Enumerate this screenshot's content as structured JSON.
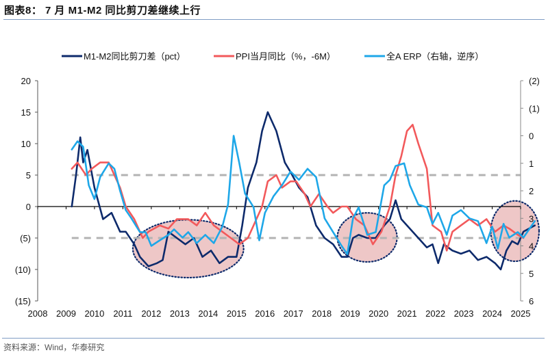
{
  "header": {
    "title": "图表8：  7 月 M1-M2 同比剪刀差继续上行"
  },
  "footer": {
    "source": "资料来源：Wind，华泰研究"
  },
  "chart_data": {
    "type": "line",
    "title": "7 月 M1-M2 同比剪刀差继续上行",
    "xlabel": "",
    "ylabel": "",
    "xlim": [
      2008,
      2025
    ],
    "x_ticks": [
      "2008",
      "2009",
      "2010",
      "2011",
      "2012",
      "2013",
      "2014",
      "2015",
      "2016",
      "2017",
      "2018",
      "2019",
      "2020",
      "2021",
      "2022",
      "2023",
      "2024",
      "2025"
    ],
    "y_left": {
      "lim": [
        -15,
        20
      ],
      "ticks": [
        20,
        15,
        10,
        5,
        0,
        -5,
        -10,
        -15
      ],
      "tick_labels": [
        "20",
        "15",
        "10",
        "5",
        "0",
        "(5)",
        "(10)",
        "(15)"
      ]
    },
    "y_right": {
      "lim": [
        -2,
        6
      ],
      "reversed": true,
      "ticks": [
        -2,
        -1,
        0,
        1,
        2,
        3,
        4,
        5,
        6
      ],
      "tick_labels": [
        "(2)",
        "(1)",
        "0",
        "1",
        "2",
        "3",
        "4",
        "5",
        "6"
      ]
    },
    "grid": false,
    "legend_position": "top",
    "reference_lines": [
      {
        "axis": "left",
        "value": 5,
        "style": "dashed",
        "color": "#b3b3b3"
      },
      {
        "axis": "left",
        "value": -5,
        "style": "dashed",
        "color": "#b3b3b3"
      }
    ],
    "highlights": [
      {
        "shape": "ellipse",
        "cx": 2013.3,
        "cy": -6.7,
        "rx_years": 1.95,
        "ry_units": 4.6,
        "fill": "#e8b4b4",
        "border": "dotted"
      },
      {
        "shape": "ellipse",
        "cx": 2019.6,
        "cy": -4.9,
        "rx_years": 1.05,
        "ry_units": 3.9,
        "fill": "#e8b4b4",
        "border": "dotted"
      },
      {
        "shape": "ellipse",
        "cx": 2024.8,
        "cy": -3.9,
        "rx_years": 0.85,
        "ry_units": 4.8,
        "fill": "#e8b4b4",
        "border": "dotted"
      }
    ],
    "series": [
      {
        "name": "M1-M2同比剪刀差（pct）",
        "axis": "left",
        "color": "#0d2a6b",
        "x": [
          2009.2,
          2009.35,
          2009.5,
          2009.6,
          2009.75,
          2010.0,
          2010.3,
          2010.6,
          2010.9,
          2011.1,
          2011.4,
          2011.6,
          2011.9,
          2012.2,
          2012.4,
          2012.6,
          2012.9,
          2013.2,
          2013.5,
          2013.8,
          2014.1,
          2014.4,
          2014.7,
          2015.0,
          2015.2,
          2015.4,
          2015.7,
          2015.9,
          2016.1,
          2016.4,
          2016.7,
          2016.9,
          2017.2,
          2017.5,
          2017.8,
          2018.1,
          2018.4,
          2018.7,
          2018.9,
          2019.1,
          2019.3,
          2019.6,
          2019.9,
          2020.2,
          2020.4,
          2020.6,
          2020.8,
          2021.1,
          2021.4,
          2021.7,
          2021.9,
          2022.1,
          2022.3,
          2022.6,
          2022.9,
          2023.2,
          2023.5,
          2023.8,
          2024.1,
          2024.3,
          2024.5,
          2024.7,
          2024.9,
          2025.1,
          2025.5
        ],
        "values": [
          0,
          5,
          11,
          7,
          9,
          3,
          -2,
          -1,
          -4,
          -4,
          -6,
          -8,
          -9.5,
          -9,
          -8.5,
          -4,
          -5,
          -6,
          -5,
          -8,
          -7,
          -9,
          -8,
          -8,
          -3,
          3,
          7,
          12,
          15,
          12,
          7,
          5.5,
          3,
          1.5,
          -3,
          -5,
          -6,
          -8,
          -8,
          -5,
          -4.5,
          -5,
          -5,
          -3,
          -2,
          1,
          -2,
          -3.5,
          -5,
          -6.5,
          -6,
          -9,
          -6,
          -7,
          -7.5,
          -7,
          -8.5,
          -8,
          -9,
          -10,
          -7,
          -5.5,
          -6,
          -4,
          -3
        ]
      },
      {
        "name": "PPI当月同比（%，-6M）",
        "axis": "left",
        "color": "#f2595b",
        "x": [
          2009.2,
          2009.4,
          2009.7,
          2009.9,
          2010.2,
          2010.5,
          2010.7,
          2010.9,
          2011.1,
          2011.4,
          2011.7,
          2011.9,
          2012.3,
          2012.6,
          2012.9,
          2013.3,
          2013.6,
          2013.9,
          2014.2,
          2014.5,
          2014.8,
          2015.1,
          2015.4,
          2015.6,
          2015.9,
          2016.1,
          2016.4,
          2016.6,
          2016.9,
          2017.1,
          2017.4,
          2017.6,
          2017.9,
          2018.2,
          2018.4,
          2018.7,
          2018.9,
          2019.2,
          2019.5,
          2019.8,
          2020.1,
          2020.4,
          2020.6,
          2020.8,
          2021.0,
          2021.2,
          2021.4,
          2021.7,
          2021.9,
          2022.2,
          2022.4,
          2022.6,
          2022.9,
          2023.2,
          2023.5,
          2023.8,
          2024.1,
          2024.4,
          2024.6,
          2024.9,
          2025.1
        ],
        "values": [
          6,
          7,
          5,
          6,
          7,
          7,
          5,
          3,
          0,
          -2,
          -5,
          -4,
          -3,
          -3.5,
          -2,
          -2,
          -3,
          -1,
          -3,
          -4,
          -5,
          -6,
          -5,
          -3,
          0,
          4,
          5,
          3,
          4,
          4,
          2,
          0,
          2,
          0,
          -1,
          0,
          0,
          -2,
          -3,
          -6,
          -4,
          0,
          5,
          8,
          12,
          13,
          10,
          6,
          -3,
          -4,
          -7,
          -4,
          -3,
          -2,
          -3,
          -2,
          -4,
          -3,
          -3.5,
          -4.5,
          -5
        ]
      },
      {
        "name": "全A ERP（右轴，逆序）",
        "axis": "right",
        "color": "#1ea7e8",
        "x": [
          2009.2,
          2009.4,
          2009.6,
          2009.8,
          2010.0,
          2010.2,
          2010.5,
          2010.7,
          2010.9,
          2011.1,
          2011.3,
          2011.6,
          2011.8,
          2012.0,
          2012.3,
          2012.6,
          2012.8,
          2013.1,
          2013.3,
          2013.6,
          2013.9,
          2014.2,
          2014.5,
          2014.7,
          2014.9,
          2015.1,
          2015.3,
          2015.6,
          2015.8,
          2016.0,
          2016.3,
          2016.6,
          2016.9,
          2017.2,
          2017.5,
          2017.8,
          2018.1,
          2018.4,
          2018.7,
          2018.9,
          2019.1,
          2019.3,
          2019.6,
          2019.9,
          2020.2,
          2020.4,
          2020.6,
          2020.9,
          2021.1,
          2021.4,
          2021.7,
          2021.9,
          2022.1,
          2022.4,
          2022.6,
          2022.9,
          2023.2,
          2023.5,
          2023.8,
          2024.0,
          2024.2,
          2024.4,
          2024.6,
          2024.9,
          2025.1,
          2025.5
        ],
        "values": [
          0.5,
          0.2,
          0.4,
          1.8,
          2.3,
          1.5,
          1.0,
          1.2,
          2.0,
          2.7,
          3.0,
          3.5,
          3.5,
          4.0,
          3.8,
          3.6,
          3.4,
          3.7,
          3.5,
          3.9,
          3.6,
          3.9,
          3.3,
          2.5,
          0.0,
          1.0,
          2.1,
          2.6,
          3.8,
          2.8,
          2.2,
          1.8,
          1.3,
          1.6,
          1.2,
          1.5,
          3.0,
          3.5,
          4.0,
          4.3,
          3.0,
          2.6,
          3.6,
          3.5,
          1.8,
          1.6,
          1.1,
          1.0,
          1.8,
          2.5,
          2.6,
          3.2,
          2.8,
          3.6,
          2.9,
          2.7,
          3.0,
          3.1,
          3.9,
          3.3,
          4.1,
          3.2,
          3.7,
          3.5,
          3.7,
          3.1
        ]
      }
    ]
  }
}
